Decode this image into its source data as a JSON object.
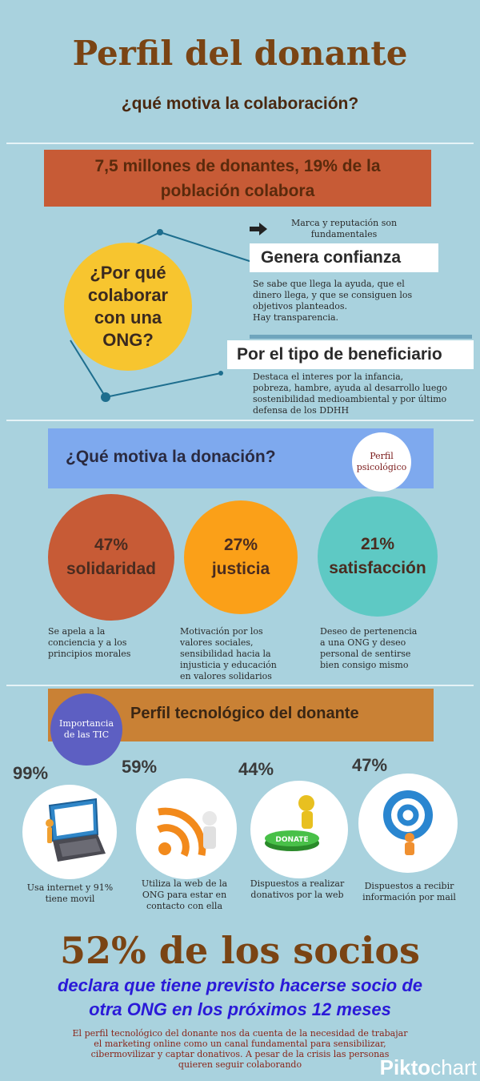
{
  "header": {
    "title": "Perfil del donante",
    "subtitle": "¿qué motiva la colaboración?"
  },
  "banner1": {
    "line1": "7,5 millones de donantes, 19% de la",
    "line2": "población colabora"
  },
  "why": {
    "question_lines": [
      "¿Por qué",
      "colaborar",
      "con una",
      "ONG?"
    ],
    "note_line1": "Marca y reputación son",
    "note_line2": "fundamentales",
    "trust_title": "Genera confianza",
    "trust_lines": [
      "Se sabe que llega la ayuda, que el",
      "dinero llega, y que se consiguen los",
      "objetivos planteados.",
      "Hay transparencia."
    ],
    "beneficiary_title": "Por el tipo de beneficiario",
    "beneficiary_lines": [
      "Destaca el interes por la infancia,",
      "pobreza, hambre, ayuda al desarrollo luego",
      "sostenibilidad medioambiental y por último",
      "defensa de los DDHH"
    ]
  },
  "motivation": {
    "title": "¿Qué motiva la donación?",
    "badge_line1": "Perfil",
    "badge_line2": "psicológico",
    "items": [
      {
        "percent": "47%",
        "label": "solidaridad",
        "color": "#c75b36",
        "desc": [
          "Se apela a la",
          "conciencia y a los",
          "principios morales"
        ]
      },
      {
        "percent": "27%",
        "label": "justicia",
        "color": "#fba018",
        "desc": [
          "Motivación por los",
          "valores sociales,",
          "sensibilidad hacia la",
          "injusticia y educación",
          "en valores solidarios"
        ]
      },
      {
        "percent": "21%",
        "label": "satisfacción",
        "color": "#5ec9c4",
        "desc": [
          "Deseo de pertenencia",
          "a una ONG y deseo",
          "personal de sentirse",
          "bien consigo mismo"
        ]
      }
    ]
  },
  "tech": {
    "title": "Perfil tecnológico del donante",
    "badge_line1": "Importancia",
    "badge_line2": "de las TIC",
    "items": [
      {
        "percent": "99%",
        "icon": "laptop-icon",
        "caption": [
          "Usa internet y 91%",
          "tiene movil"
        ]
      },
      {
        "percent": "59%",
        "icon": "rss-icon",
        "caption": [
          "Utiliza la web de la",
          "ONG para estar en",
          "contacto con ella"
        ]
      },
      {
        "percent": "44%",
        "icon": "donate-button-icon",
        "donate_text": "DONATE",
        "caption": [
          "Dispuestos a realizar",
          "donativos por la web"
        ]
      },
      {
        "percent": "47%",
        "icon": "email-at-icon",
        "caption": [
          "Dispuestos a recibir",
          "información por mail"
        ]
      }
    ]
  },
  "footer": {
    "big": "52% de los socios",
    "blue_line1": "declara que tiene previsto hacerse socio de",
    "blue_line2": "otra ONG en los próximos 12 meses",
    "body_lines": [
      "El perfil tecnológico del donante nos da cuenta de la necesidad de trabajar",
      "el marketing online como un canal fundamental para sensibilizar,",
      "cibermovilizar y captar donativos. A pesar de la crisis las personas",
      "quieren seguir colaborando"
    ],
    "brand_bold": "Pikto",
    "brand_rest": "chart"
  }
}
